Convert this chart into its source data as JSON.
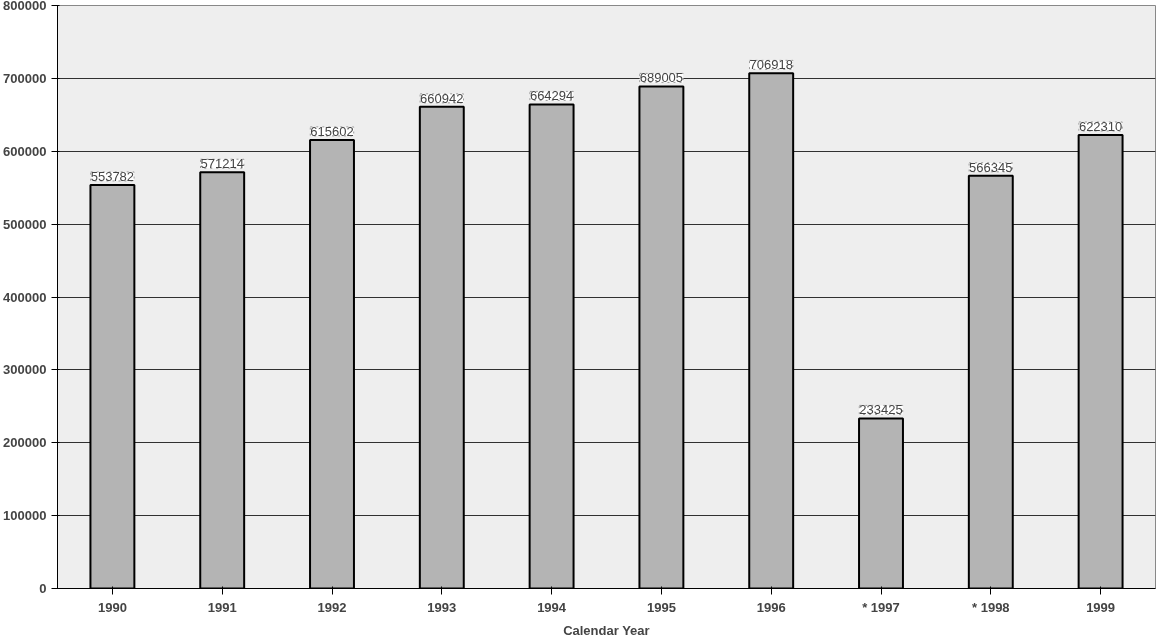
{
  "chart_data": {
    "type": "bar",
    "xlabel": "Calendar Year",
    "categories": [
      "1990",
      "1991",
      "1992",
      "1993",
      "1994",
      "1995",
      "1996",
      "* 1997",
      "* 1998",
      "1999"
    ],
    "values": [
      553782,
      571214,
      615602,
      660942,
      664294,
      689005,
      706918,
      233425,
      566345,
      622310
    ],
    "color": "#b4b4b4",
    "ylim": [
      0,
      800000
    ],
    "yticks": [
      0,
      100000,
      200000,
      300000,
      400000,
      500000,
      600000,
      700000,
      800000
    ],
    "grid": "y",
    "data_labels": true
  }
}
